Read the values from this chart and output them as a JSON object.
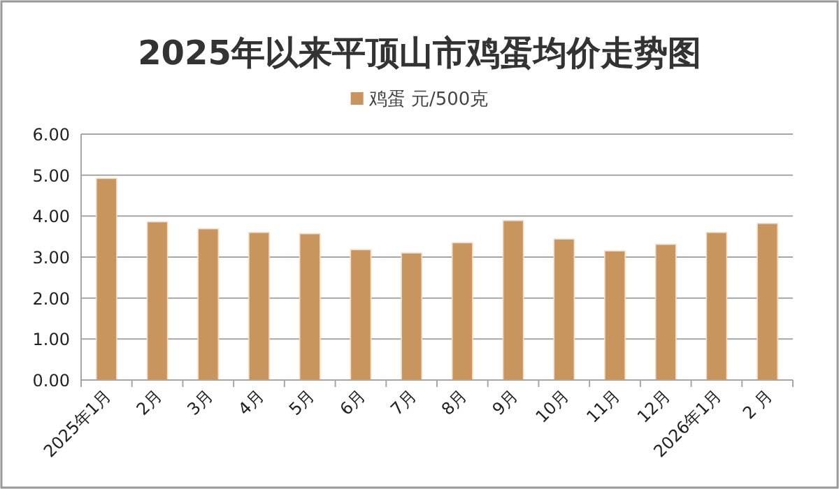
{
  "chart_data": {
    "type": "bar",
    "title": "2025年以来平顶山市鸡蛋均价走势图",
    "categories": [
      "2025年1月",
      "2月",
      "3月",
      "4月",
      "5月",
      "6月",
      "7月",
      "8月",
      "9月",
      "10月",
      "11月",
      "12月",
      "2026年1月",
      "2 月"
    ],
    "series": [
      {
        "name": "鸡蛋 元/500克",
        "color": "#c8955f",
        "values": [
          4.92,
          3.86,
          3.69,
          3.6,
          3.57,
          3.18,
          3.1,
          3.35,
          3.89,
          3.44,
          3.15,
          3.31,
          3.6,
          3.82
        ]
      }
    ],
    "ylim": [
      0,
      6
    ],
    "yticks": [
      {
        "value": 0,
        "label": "0.00"
      },
      {
        "value": 1,
        "label": "1.00"
      },
      {
        "value": 2,
        "label": "2.00"
      },
      {
        "value": 3,
        "label": "3.00"
      },
      {
        "value": 4,
        "label": "4.00"
      },
      {
        "value": 5,
        "label": "5.00"
      },
      {
        "value": 6,
        "label": "6.00"
      }
    ],
    "grid": "y",
    "legend": "top"
  }
}
